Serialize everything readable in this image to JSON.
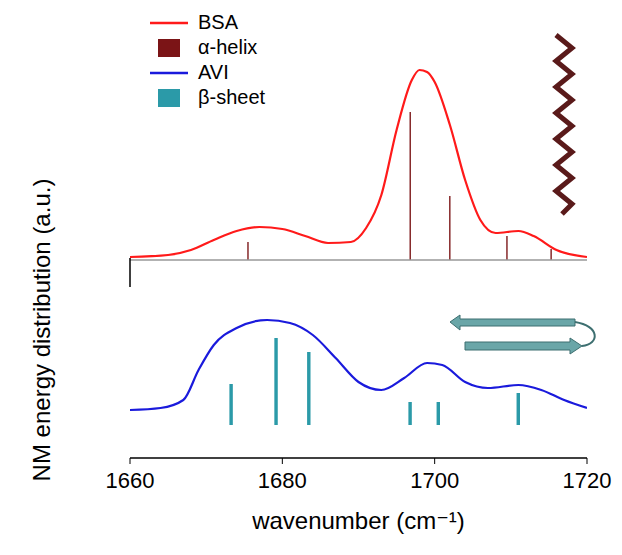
{
  "chart_data": [
    {
      "type": "mixed",
      "ylabel": "NM energy distribution (a.u.)",
      "legend": "upper left",
      "tick_labels": false,
      "xlim": [
        1660,
        1720
      ],
      "ylim": [
        0,
        20
      ],
      "series": [
        {
          "name": "BSA",
          "type": "line",
          "color": "#ff1a1a",
          "x": [
            1660,
            1665,
            1668,
            1671,
            1674,
            1677,
            1680,
            1683,
            1686,
            1689,
            1691,
            1693,
            1695,
            1697,
            1698,
            1699,
            1700,
            1702,
            1704,
            1706,
            1708,
            1711,
            1713,
            1716,
            1720
          ],
          "values": [
            0.3,
            0.5,
            1.0,
            2.0,
            2.9,
            3.3,
            3.1,
            2.4,
            1.7,
            1.8,
            3.2,
            6.5,
            13.0,
            18.0,
            19.0,
            18.8,
            17.8,
            13.5,
            8.0,
            4.0,
            2.7,
            2.9,
            2.4,
            1.0,
            0.3
          ]
        },
        {
          "name": "α-helix",
          "type": "bar",
          "color": "#7b1416",
          "x": [
            1675.5,
            1696.8,
            1702,
            1709.5,
            1715.3
          ],
          "values": [
            1.8,
            14.8,
            6.4,
            2.4,
            1.1
          ]
        }
      ]
    },
    {
      "type": "mixed",
      "xlabel": "wavenumber (cm⁻¹)",
      "tick_labels": "x",
      "xlim": [
        1660,
        1720
      ],
      "xticks": [
        1660,
        1680,
        1700,
        1720
      ],
      "ylim": [
        -3.3,
        14
      ],
      "series": [
        {
          "name": "AVI",
          "type": "line",
          "color": "#1a1adc",
          "x": [
            1660,
            1664,
            1667,
            1669,
            1671,
            1674,
            1678,
            1681,
            1684,
            1687,
            1690,
            1693,
            1696,
            1699,
            1701,
            1704,
            1707,
            1711,
            1714,
            1717,
            1720
          ],
          "values": [
            1.5,
            1.7,
            2.5,
            5.5,
            8.0,
            9.7,
            10.5,
            10.2,
            9.0,
            6.7,
            4.3,
            3.5,
            4.7,
            6.2,
            6.0,
            4.3,
            3.7,
            4.0,
            3.5,
            2.5,
            1.7
          ]
        },
        {
          "name": "β-sheet",
          "type": "bar",
          "color": "#2b9aa8",
          "x": [
            1673.3,
            1679.2,
            1683.5,
            1696.8,
            1700.5,
            1711
          ],
          "values": [
            4.1,
            8.7,
            7.3,
            2.3,
            2.3,
            3.2
          ]
        }
      ]
    }
  ]
}
